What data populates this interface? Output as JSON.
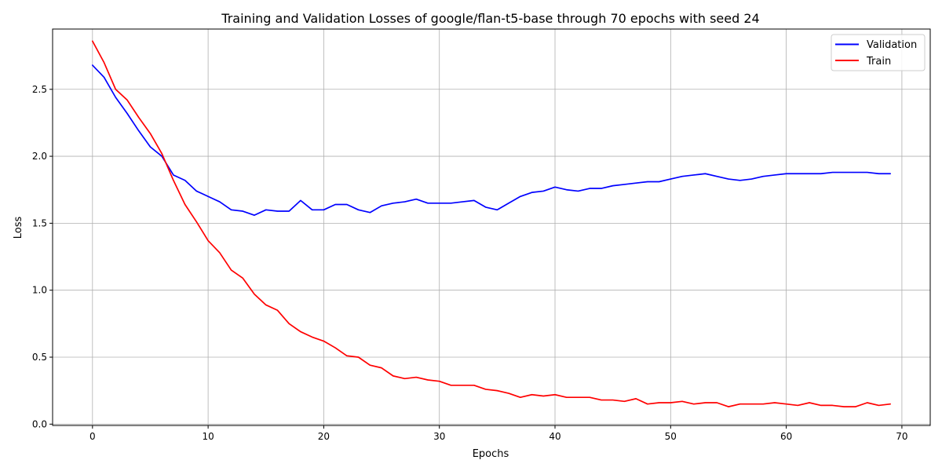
{
  "chart_data": {
    "type": "line",
    "title": "Training and Validation Losses of google/flan-t5-base through 70 epochs with seed 24",
    "xlabel": "Epochs",
    "ylabel": "Loss",
    "xlim": [
      -3.45,
      72.45
    ],
    "ylim": [
      -0.01,
      2.95
    ],
    "xticks": [
      0,
      10,
      20,
      30,
      40,
      50,
      60,
      70
    ],
    "yticks": [
      0.0,
      0.5,
      1.0,
      1.5,
      2.0,
      2.5
    ],
    "ytick_labels": [
      "0.0",
      "0.5",
      "1.0",
      "1.5",
      "2.0",
      "2.5"
    ],
    "grid": true,
    "legend_position": "top-right",
    "x": [
      0,
      1,
      2,
      3,
      4,
      5,
      6,
      7,
      8,
      9,
      10,
      11,
      12,
      13,
      14,
      15,
      16,
      17,
      18,
      19,
      20,
      21,
      22,
      23,
      24,
      25,
      26,
      27,
      28,
      29,
      30,
      31,
      32,
      33,
      34,
      35,
      36,
      37,
      38,
      39,
      40,
      41,
      42,
      43,
      44,
      45,
      46,
      47,
      48,
      49,
      50,
      51,
      52,
      53,
      54,
      55,
      56,
      57,
      58,
      59,
      60,
      61,
      62,
      63,
      64,
      65,
      66,
      67,
      68,
      69
    ],
    "series": [
      {
        "name": "Validation",
        "color": "#0000ff",
        "values": [
          2.68,
          2.59,
          2.44,
          2.32,
          2.19,
          2.07,
          2.0,
          1.86,
          1.82,
          1.74,
          1.7,
          1.66,
          1.6,
          1.59,
          1.56,
          1.6,
          1.59,
          1.59,
          1.67,
          1.6,
          1.6,
          1.64,
          1.64,
          1.6,
          1.58,
          1.63,
          1.65,
          1.66,
          1.68,
          1.65,
          1.65,
          1.65,
          1.66,
          1.67,
          1.62,
          1.6,
          1.65,
          1.7,
          1.73,
          1.74,
          1.77,
          1.75,
          1.74,
          1.76,
          1.76,
          1.78,
          1.79,
          1.8,
          1.81,
          1.81,
          1.83,
          1.85,
          1.86,
          1.87,
          1.85,
          1.83,
          1.82,
          1.83,
          1.85,
          1.86,
          1.87,
          1.87,
          1.87,
          1.87,
          1.88,
          1.88,
          1.88,
          1.88,
          1.87,
          1.87
        ]
      },
      {
        "name": "Train",
        "color": "#ff0000",
        "values": [
          2.86,
          2.7,
          2.5,
          2.42,
          2.29,
          2.17,
          2.02,
          1.82,
          1.64,
          1.51,
          1.37,
          1.28,
          1.15,
          1.09,
          0.97,
          0.89,
          0.85,
          0.75,
          0.69,
          0.65,
          0.62,
          0.57,
          0.51,
          0.5,
          0.44,
          0.42,
          0.36,
          0.34,
          0.35,
          0.33,
          0.32,
          0.29,
          0.29,
          0.29,
          0.26,
          0.25,
          0.23,
          0.2,
          0.22,
          0.21,
          0.22,
          0.2,
          0.2,
          0.2,
          0.18,
          0.18,
          0.17,
          0.19,
          0.15,
          0.16,
          0.16,
          0.17,
          0.15,
          0.16,
          0.16,
          0.13,
          0.15,
          0.15,
          0.15,
          0.16,
          0.15,
          0.14,
          0.16,
          0.14,
          0.14,
          0.13,
          0.13,
          0.16,
          0.14,
          0.15
        ]
      }
    ]
  }
}
